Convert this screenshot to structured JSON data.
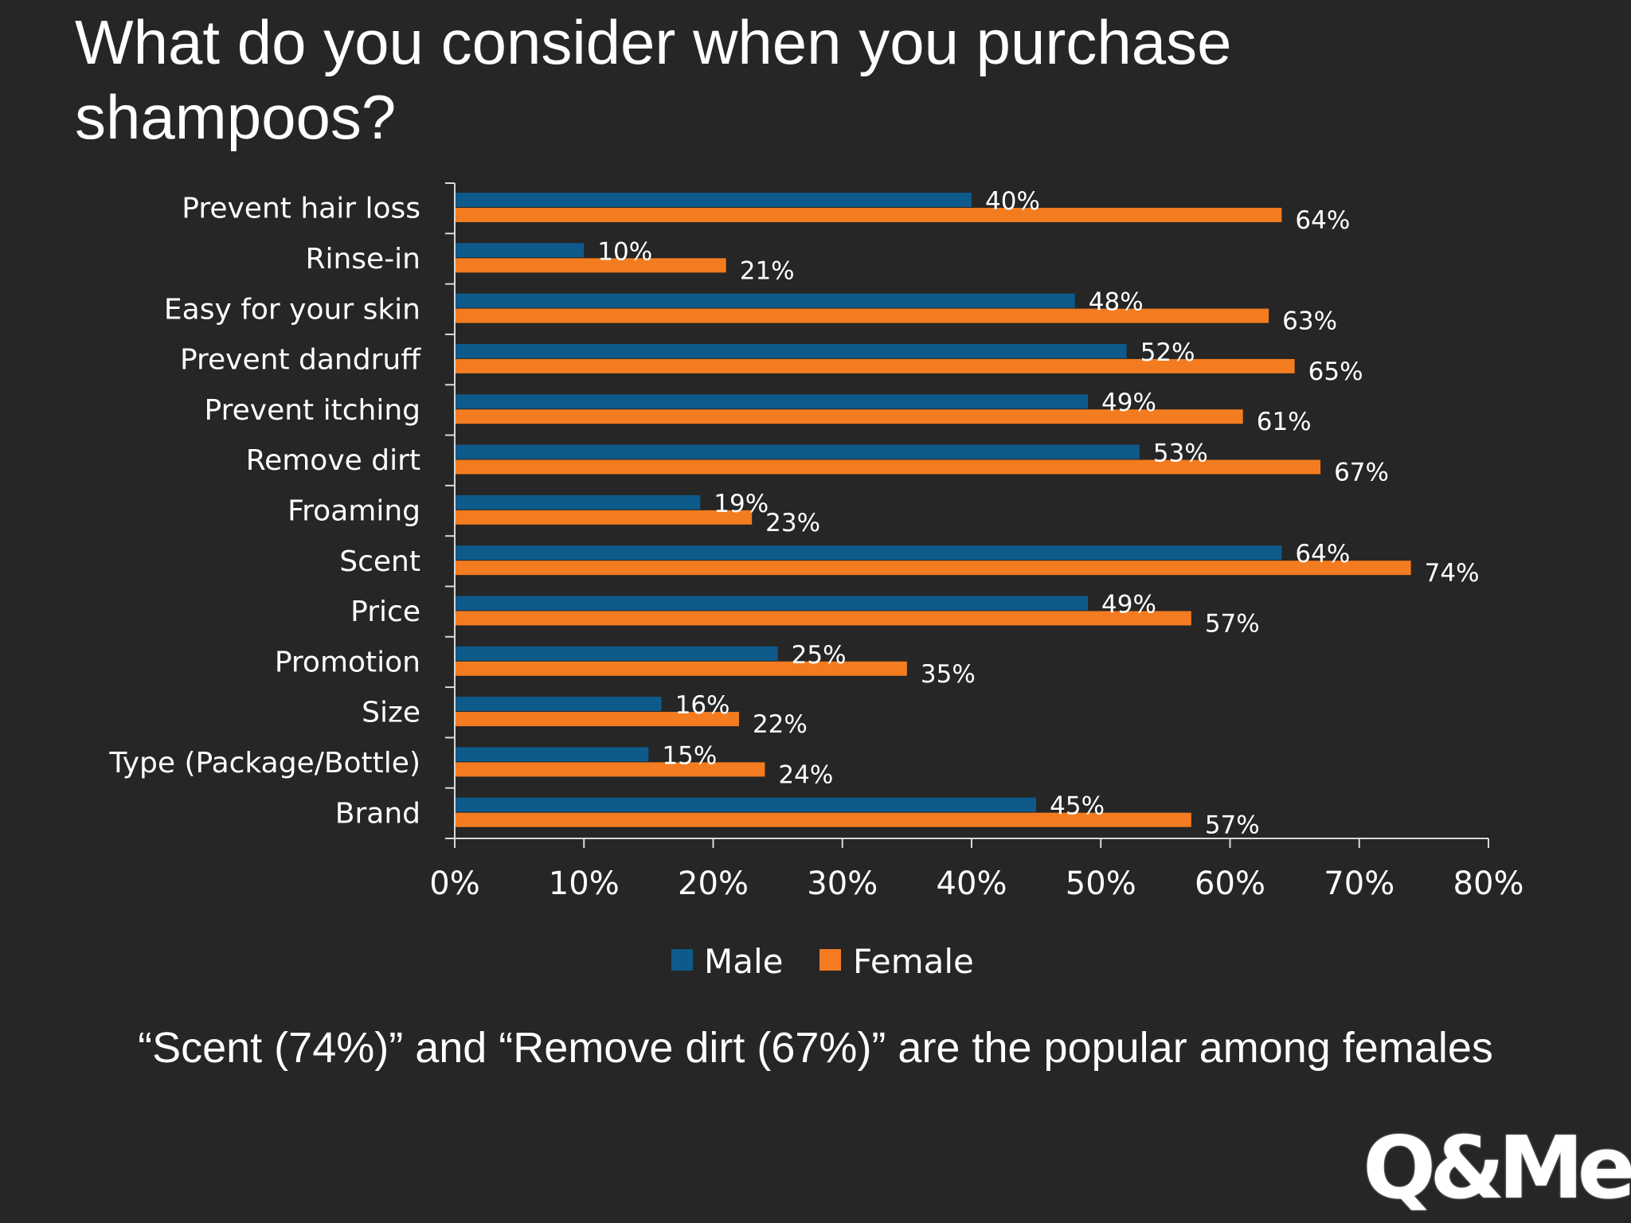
{
  "slide": {
    "title": "What do you consider when you purchase shampoos?",
    "footnote": "“Scent (74%)” and “Remove dirt (67%)” are the popular among females",
    "logo": "Q&Me"
  },
  "colors": {
    "background": "#262626",
    "male": "#0e5a8a",
    "female": "#f47c20",
    "axis": "#d9d9d9",
    "text": "#ffffff"
  },
  "chart_data": {
    "type": "bar",
    "orientation": "horizontal",
    "title": "",
    "xlabel": "",
    "ylabel": "",
    "xlim": [
      0,
      80
    ],
    "tick_values": [
      0,
      10,
      20,
      30,
      40,
      50,
      60,
      70,
      80
    ],
    "tick_labels": [
      "0%",
      "10%",
      "20%",
      "30%",
      "40%",
      "50%",
      "60%",
      "70%",
      "80%"
    ],
    "grid": false,
    "legend_position": "bottom",
    "categories": [
      "Prevent hair loss",
      "Rinse-in",
      "Easy for your skin",
      "Prevent dandruff",
      "Prevent itching",
      "Remove dirt",
      "Froaming",
      "Scent",
      "Price",
      "Promotion",
      "Size",
      "Type (Package/Bottle)",
      "Brand"
    ],
    "series": [
      {
        "name": "Male",
        "color": "#0e5a8a",
        "values": [
          40,
          10,
          48,
          52,
          49,
          53,
          19,
          64,
          49,
          25,
          16,
          15,
          45
        ]
      },
      {
        "name": "Female",
        "color": "#f47c20",
        "values": [
          64,
          21,
          63,
          65,
          61,
          67,
          23,
          74,
          57,
          35,
          22,
          24,
          57
        ]
      }
    ]
  }
}
